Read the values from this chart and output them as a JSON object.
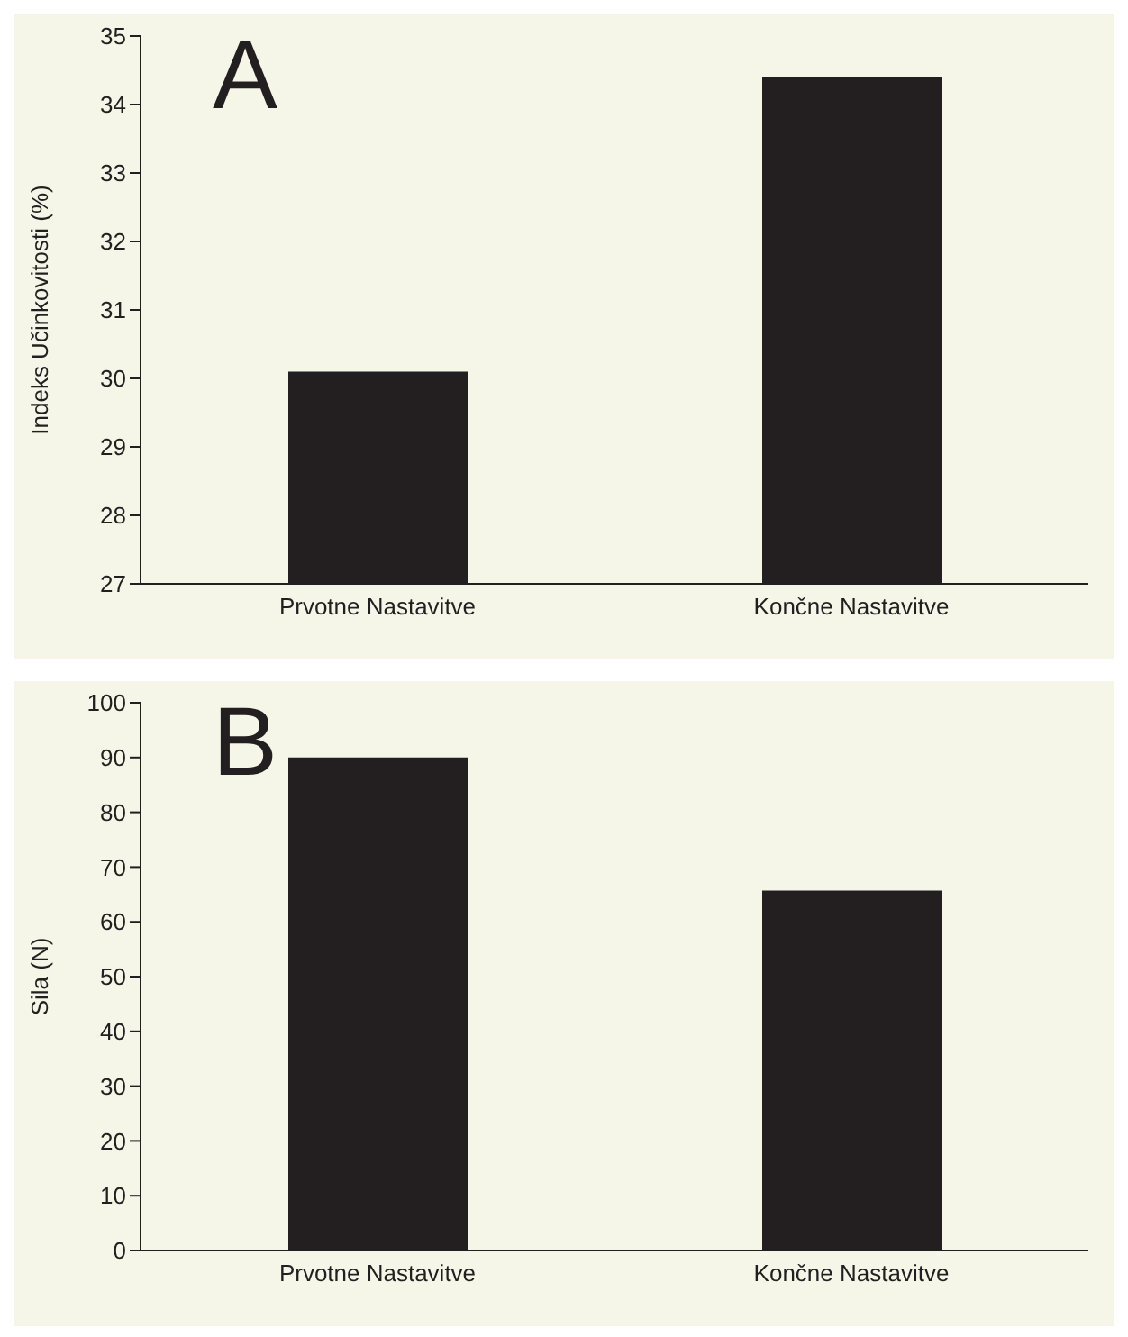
{
  "chart_data": [
    {
      "type": "bar",
      "title": "A",
      "ylabel": "Indeks Učinkovitosti (%)",
      "categories": [
        "Prvotne Nastavitve",
        "Končne Nastavitve"
      ],
      "values": [
        30.1,
        34.4
      ],
      "color": "#231f20",
      "ylim": [
        27,
        35
      ],
      "yticks": [
        27,
        28,
        29,
        30,
        31,
        32,
        33,
        34,
        35
      ],
      "grid": false,
      "legend": false
    },
    {
      "type": "bar",
      "title": "B",
      "ylabel": "Sila (N)",
      "categories": [
        "Prvotne Nastavitve",
        "Končne Nastavitve"
      ],
      "values": [
        90,
        65.7
      ],
      "color": "#231f20",
      "ylim": [
        0,
        100
      ],
      "yticks": [
        0,
        10,
        20,
        30,
        40,
        50,
        60,
        70,
        80,
        90,
        100
      ],
      "grid": false,
      "legend": false
    }
  ]
}
